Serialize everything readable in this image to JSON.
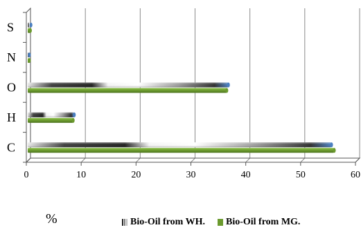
{
  "chart_data": {
    "type": "bar",
    "orientation": "horizontal",
    "categories": [
      "C",
      "H",
      "O",
      "N",
      "S"
    ],
    "series": [
      {
        "name": "Bio-Oil from WH.",
        "values": [
          55.4,
          8.5,
          36.6,
          0.3,
          0.6
        ],
        "color": "#4a7fc1"
      },
      {
        "name": "Bio-Oil from MG.",
        "values": [
          55.9,
          8.3,
          36.3,
          0.3,
          0.5
        ],
        "color": "#6b9a2e"
      }
    ],
    "xlim": [
      0,
      60
    ],
    "xticks": [
      "0",
      "10",
      "20",
      "30",
      "40",
      "50",
      "60"
    ],
    "xlabel": "%",
    "ylabel": "",
    "title": "",
    "grid": true,
    "legend": "bottom"
  }
}
